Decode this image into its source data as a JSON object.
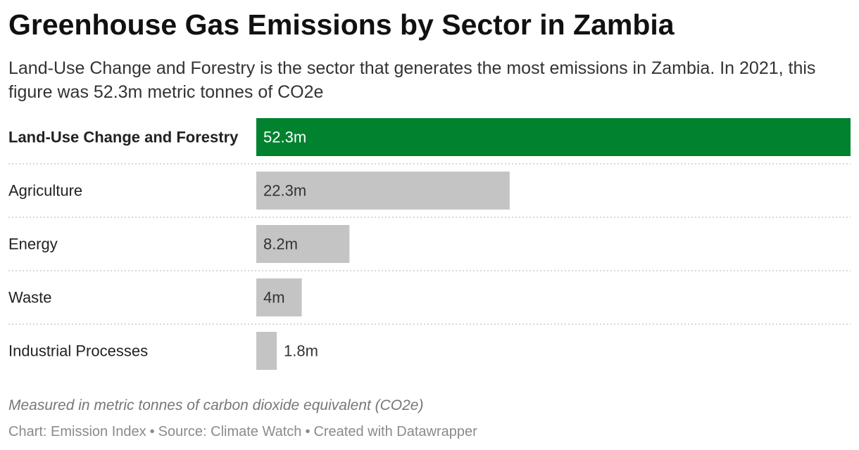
{
  "header": {
    "title": "Greenhouse Gas Emissions by Sector in Zambia",
    "subtitle": "Land-Use Change and Forestry is the sector that generates the most emissions in Zambia. In 2021, this figure was 52.3m metric tonnes of CO2e"
  },
  "chart_data": {
    "type": "bar",
    "orientation": "horizontal",
    "categories": [
      "Land-Use Change and Forestry",
      "Agriculture",
      "Energy",
      "Waste",
      "Industrial Processes"
    ],
    "values": [
      52.3,
      22.3,
      8.2,
      4,
      1.8
    ],
    "value_labels": [
      "52.3m",
      "22.3m",
      "8.2m",
      "4m",
      "1.8m"
    ],
    "highlighted_category": "Land-Use Change and Forestry",
    "colors": {
      "highlight": "#00822f",
      "default": "#c4c4c4",
      "separator": "#cccccc"
    },
    "xlim": [
      0,
      52.3
    ],
    "grid": false,
    "legend": "none"
  },
  "footer": {
    "notes": "Measured in metric tonnes of carbon dioxide equivalent (CO2e)",
    "credit": "Chart: Emission Index",
    "source": "Source: Climate Watch",
    "tool": "Created with Datawrapper",
    "separator": "•"
  }
}
